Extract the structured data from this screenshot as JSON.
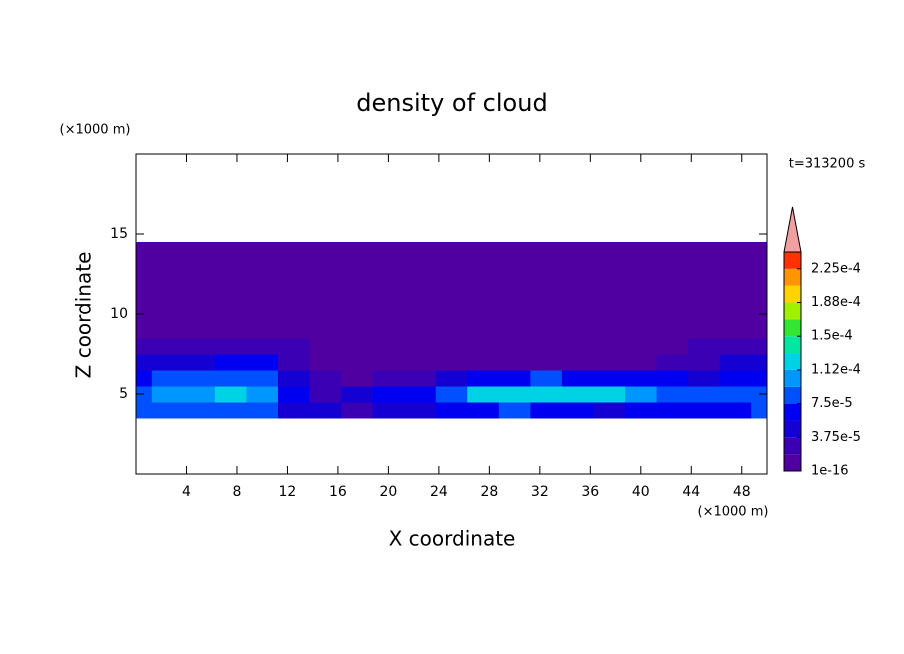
{
  "chart_data": {
    "type": "contour",
    "title": "density of cloud",
    "xlabel": "X coordinate",
    "ylabel": "Z coordinate",
    "xunit": "(×1000 m)",
    "yunit": "(×1000 m)",
    "annotation": "t=313200 s",
    "xlim": [
      0,
      50
    ],
    "xticks": [
      4,
      8,
      12,
      16,
      20,
      24,
      28,
      32,
      36,
      40,
      44,
      48
    ],
    "ylim": [
      0,
      20
    ],
    "yticks": [
      5,
      10,
      15
    ],
    "levels": [
      1e-16,
      1.875e-05,
      3.75e-05,
      5.625e-05,
      7.5e-05,
      9.375e-05,
      0.0001125,
      0.00013125,
      0.00015,
      0.00016875,
      0.0001875,
      0.00020625,
      0.000225,
      0.00024375
    ],
    "colors": [
      "#5000a0",
      "#3c00b4",
      "#1400d2",
      "#0000f0",
      "#0050ff",
      "#0096ff",
      "#00d2e6",
      "#00e6a0",
      "#32e632",
      "#a0f000",
      "#ffd200",
      "#ff9600",
      "#ff3200"
    ],
    "extend_color": "#f0a0a0",
    "cbar_ticks": [
      {
        "value": 1e-16,
        "label": "1e-16"
      },
      {
        "value": 3.75e-05,
        "label": "3.75e-5"
      },
      {
        "value": 7.5e-05,
        "label": "7.5e-5"
      },
      {
        "value": 0.0001125,
        "label": "1.12e-4"
      },
      {
        "value": 0.00015,
        "label": "1.5e-4"
      },
      {
        "value": 0.0001875,
        "label": "1.88e-4"
      },
      {
        "value": 0.000225,
        "label": "2.25e-4"
      }
    ],
    "x": [
      0,
      2.5,
      5,
      7.5,
      10,
      12.5,
      15,
      17.5,
      20,
      22.5,
      25,
      27.5,
      30,
      32.5,
      35,
      37.5,
      40,
      42.5,
      45,
      47.5,
      50
    ],
    "y": [
      4,
      5,
      6,
      7,
      8,
      9,
      10,
      11,
      12,
      13,
      14
    ],
    "z": [
      [
        8e-05,
        9e-05,
        8.5e-05,
        9e-05,
        8e-05,
        5e-05,
        4e-05,
        3e-05,
        5e-05,
        4e-05,
        6e-05,
        7e-05,
        8e-05,
        7e-05,
        6e-05,
        5e-05,
        6e-05,
        7e-05,
        6e-05,
        7e-05,
        8e-05
      ],
      [
        9e-05,
        0.000105,
        0.00011,
        0.000115,
        0.0001,
        6e-05,
        3e-05,
        4e-05,
        7e-05,
        6e-05,
        9e-05,
        0.000115,
        0.00013,
        0.000125,
        0.00013,
        0.000115,
        0.0001,
        9e-05,
        8e-05,
        9e-05,
        8e-05
      ],
      [
        7e-05,
        8e-05,
        8.5e-05,
        9e-05,
        8e-05,
        5e-05,
        2e-05,
        1.5e-05,
        3e-05,
        3e-05,
        5e-05,
        6e-05,
        7e-05,
        8e-05,
        7e-05,
        6e-05,
        6e-05,
        6e-05,
        5e-05,
        6e-05,
        6e-05
      ],
      [
        5e-05,
        4.5e-05,
        5e-05,
        6e-05,
        6.5e-05,
        3e-05,
        1e-05,
        1e-05,
        1.5e-05,
        1e-05,
        1e-05,
        1e-05,
        1e-05,
        1.5e-05,
        1.5e-05,
        1e-05,
        1.5e-05,
        2e-05,
        3e-05,
        4e-05,
        4e-05
      ],
      [
        2.5e-05,
        2.5e-05,
        2.5e-05,
        2.5e-05,
        2.5e-05,
        2e-05,
        1e-05,
        1e-05,
        1e-05,
        1e-05,
        1e-05,
        1e-05,
        1e-05,
        1e-05,
        1e-05,
        1e-05,
        1e-05,
        1e-05,
        2e-05,
        2e-05,
        2e-05
      ],
      [
        1e-05,
        1e-05,
        1e-05,
        1e-05,
        1e-05,
        1e-05,
        1e-05,
        5e-06,
        5e-06,
        5e-06,
        5e-06,
        5e-06,
        5e-06,
        5e-06,
        5e-06,
        5e-06,
        5e-06,
        5e-06,
        5e-06,
        5e-06,
        5e-06
      ],
      [
        5e-06,
        5e-06,
        5e-06,
        5e-06,
        5e-06,
        5e-06,
        5e-06,
        5e-06,
        5e-06,
        5e-06,
        5e-06,
        5e-06,
        5e-06,
        5e-06,
        5e-06,
        5e-06,
        5e-06,
        5e-06,
        5e-06,
        5e-06,
        5e-06
      ],
      [
        5e-06,
        5e-06,
        5e-06,
        5e-06,
        5e-06,
        5e-06,
        5e-06,
        5e-06,
        5e-06,
        5e-06,
        5e-06,
        5e-06,
        5e-06,
        5e-06,
        5e-06,
        5e-06,
        5e-06,
        5e-06,
        5e-06,
        5e-06,
        5e-06
      ],
      [
        5e-06,
        5e-06,
        5e-06,
        5e-06,
        5e-06,
        5e-06,
        5e-06,
        5e-06,
        5e-06,
        5e-06,
        5e-06,
        5e-06,
        5e-06,
        5e-06,
        5e-06,
        5e-06,
        5e-06,
        5e-06,
        5e-06,
        5e-06,
        5e-06
      ],
      [
        5e-06,
        5e-06,
        5e-06,
        5e-06,
        5e-06,
        5e-06,
        5e-06,
        5e-06,
        5e-06,
        5e-06,
        5e-06,
        5e-06,
        5e-06,
        5e-06,
        5e-06,
        5e-06,
        5e-06,
        5e-06,
        5e-06,
        5e-06,
        5e-06
      ],
      [
        5e-06,
        5e-06,
        5e-06,
        5e-06,
        5e-06,
        5e-06,
        5e-06,
        5e-06,
        5e-06,
        5e-06,
        5e-06,
        5e-06,
        5e-06,
        5e-06,
        5e-06,
        5e-06,
        5e-06,
        5e-06,
        5e-06,
        5e-06,
        5e-06
      ]
    ]
  }
}
